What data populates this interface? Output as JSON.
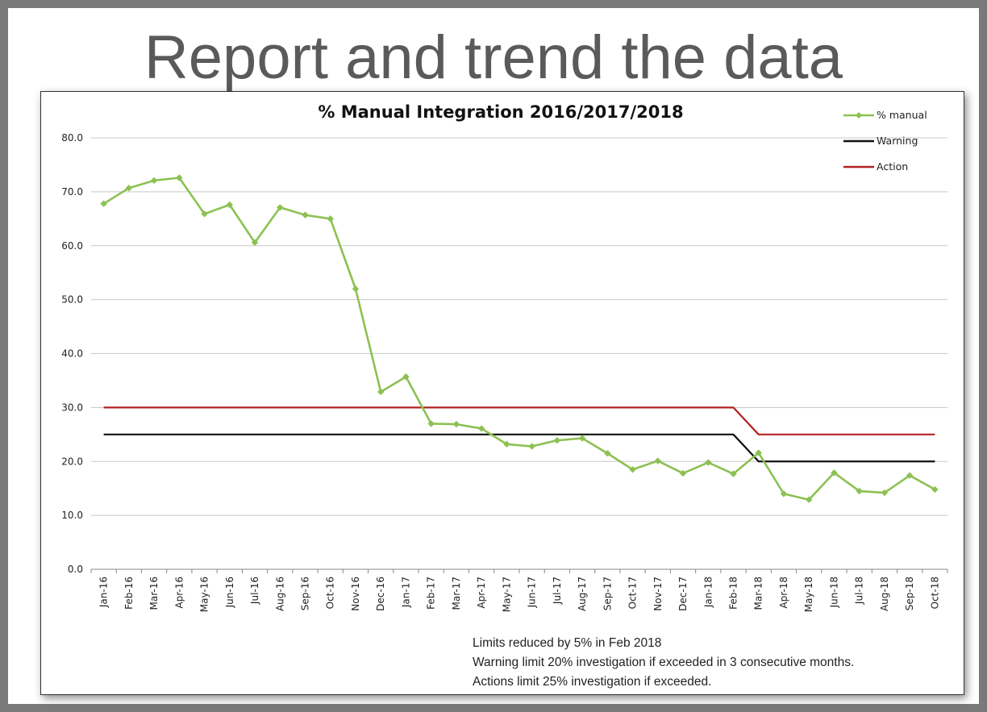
{
  "slide": {
    "title": "Report and trend the data"
  },
  "notes": [
    "Limits reduced by 5% in Feb 2018",
    "Warning limit 20% investigation if exceeded in 3 consecutive months.",
    "Actions limit 25% investigation if exceeded."
  ],
  "colors": {
    "manual": "#8cc152",
    "warning": "#111111",
    "action": "#b22222",
    "grid": "#c8c8c8"
  },
  "chart_data": {
    "type": "line",
    "title": "% Manual Integration 2016/2017/2018",
    "xlabel": "",
    "ylabel": "",
    "ylim": [
      0,
      80
    ],
    "yticks": [
      "0.0",
      "10.0",
      "20.0",
      "30.0",
      "40.0",
      "50.0",
      "60.0",
      "70.0",
      "80.0"
    ],
    "grid": true,
    "legend_position": "top-right",
    "categories": [
      "Jan-16",
      "Feb-16",
      "Mar-16",
      "Apr-16",
      "May-16",
      "Jun-16",
      "Jul-16",
      "Aug-16",
      "Sep-16",
      "Oct-16",
      "Nov-16",
      "Dec-16",
      "Jan-17",
      "Feb-17",
      "Mar-17",
      "Apr-17",
      "May-17",
      "Jun-17",
      "Jul-17",
      "Aug-17",
      "Sep-17",
      "Oct-17",
      "Nov-17",
      "Dec-17",
      "Jan-18",
      "Feb-18",
      "Mar-18",
      "Apr-18",
      "May-18",
      "Jun-18",
      "Jul-18",
      "Aug-18",
      "Sep-18",
      "Oct-18"
    ],
    "series": [
      {
        "name": "% manual",
        "markers": true,
        "values": [
          67.8,
          70.7,
          72.1,
          72.6,
          65.9,
          67.6,
          60.6,
          67.1,
          65.7,
          65.0,
          52.0,
          32.9,
          35.7,
          27.0,
          26.9,
          26.1,
          23.2,
          22.8,
          23.9,
          24.3,
          21.5,
          18.5,
          20.1,
          17.8,
          19.8,
          17.7,
          21.6,
          14.0,
          12.9,
          17.9,
          14.5,
          14.2,
          17.4,
          14.8
        ]
      },
      {
        "name": "Warning",
        "markers": false,
        "values": [
          25,
          25,
          25,
          25,
          25,
          25,
          25,
          25,
          25,
          25,
          25,
          25,
          25,
          25,
          25,
          25,
          25,
          25,
          25,
          25,
          25,
          25,
          25,
          25,
          25,
          25,
          20,
          20,
          20,
          20,
          20,
          20,
          20,
          20
        ]
      },
      {
        "name": "Action",
        "markers": false,
        "values": [
          30,
          30,
          30,
          30,
          30,
          30,
          30,
          30,
          30,
          30,
          30,
          30,
          30,
          30,
          30,
          30,
          30,
          30,
          30,
          30,
          30,
          30,
          30,
          30,
          30,
          30,
          25,
          25,
          25,
          25,
          25,
          25,
          25,
          25
        ]
      }
    ]
  }
}
